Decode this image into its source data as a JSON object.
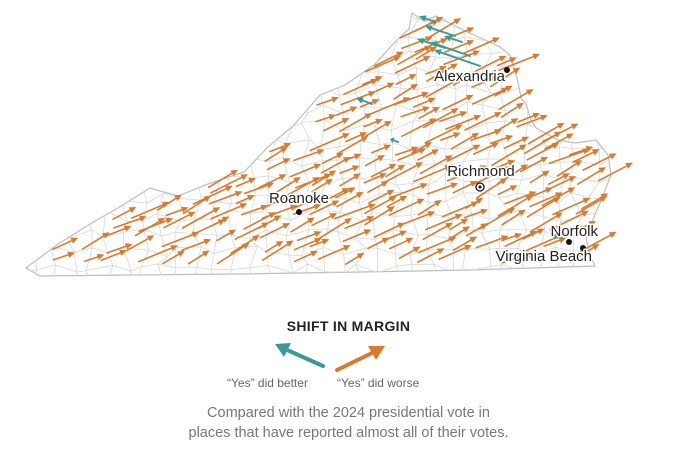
{
  "colors": {
    "better": "#3a9a94",
    "worse": "#d97a2e",
    "state_fill": "#ffffff",
    "state_stroke": "#bdbdbd",
    "county_stroke": "#d9d9d9"
  },
  "cities": [
    {
      "name": "Alexandria"
    },
    {
      "name": "Richmond"
    },
    {
      "name": "Roanoke"
    },
    {
      "name": "Norfolk"
    },
    {
      "name": "Virginia Beach"
    }
  ],
  "legend": {
    "title": "SHIFT IN MARGIN",
    "better_label": "“Yes” did better",
    "worse_label": "“Yes” did worse",
    "better_icon": "teal-arrow-icon",
    "worse_icon": "orange-arrow-icon"
  },
  "note": {
    "line1": "Compared with the 2024 presidential vote in",
    "line2": "places that have reported almost all of their votes."
  }
}
